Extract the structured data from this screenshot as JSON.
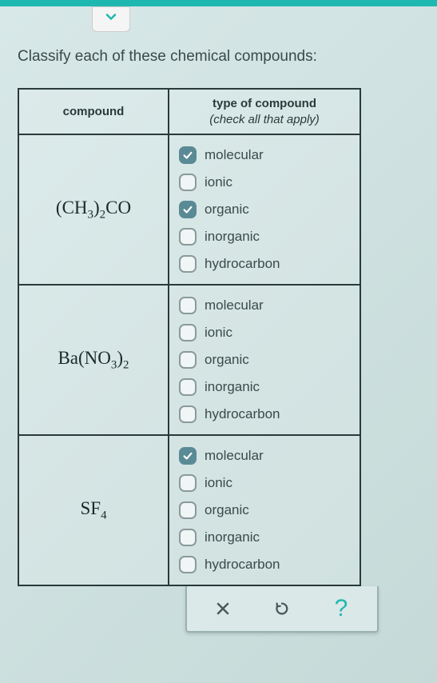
{
  "colors": {
    "teal": "#1fb8b0",
    "checkbox_checked_bg": "#5a8a95",
    "border": "#2a3a3a",
    "text": "#3a4a4a"
  },
  "instruction": "Classify each of these chemical compounds:",
  "table": {
    "header_compound": "compound",
    "header_type_bold": "type of compound",
    "header_type_italic": "(check all that apply)",
    "option_labels": [
      "molecular",
      "ionic",
      "organic",
      "inorganic",
      "hydrocarbon"
    ],
    "rows": [
      {
        "compound_html": "(CH<span class='sub'>3</span>)<span class='sub'>2</span>CO",
        "checked": [
          true,
          false,
          true,
          false,
          false
        ]
      },
      {
        "compound_html": "Ba(NO<span class='sub'>3</span>)<span class='sub'>2</span>",
        "checked": [
          false,
          false,
          false,
          false,
          false
        ]
      },
      {
        "compound_html": "SF<span class='sub'>4</span>",
        "checked": [
          true,
          false,
          false,
          false,
          false
        ]
      }
    ]
  },
  "actions": {
    "close": "×",
    "undo": "↺",
    "help": "?"
  }
}
